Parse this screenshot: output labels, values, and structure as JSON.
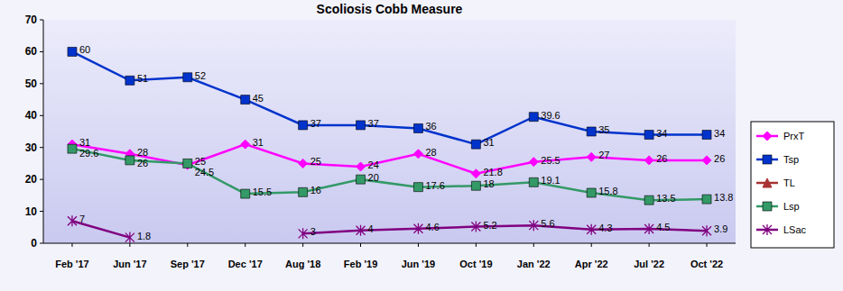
{
  "chart_data": {
    "type": "line",
    "title": "Scoliosis Cobb Measure",
    "categories": [
      "Feb '17",
      "Jun '17",
      "Sep '17",
      "Dec '17",
      "Aug '18",
      "Feb '19",
      "Jun '19",
      "Oct '19",
      "Jan '22",
      "Apr '22",
      "Jul '22",
      "Oct '22"
    ],
    "series": [
      {
        "name": "PrxT",
        "color": "#ff00ff",
        "marker": "diamond",
        "line_style": "solid",
        "values": [
          31,
          28,
          24.5,
          31,
          25,
          24,
          28,
          21.8,
          25.5,
          27,
          26,
          26
        ]
      },
      {
        "name": "Tsp",
        "color": "#0033cc",
        "marker": "square",
        "line_style": "solid",
        "values": [
          60,
          51,
          52,
          45,
          37,
          37,
          36,
          31,
          39.6,
          35,
          34,
          34
        ]
      },
      {
        "name": "TL",
        "color": "#a83232",
        "marker": "triangle",
        "line_style": "solid",
        "values": [
          null,
          null,
          null,
          null,
          null,
          null,
          null,
          null,
          null,
          null,
          null,
          null
        ]
      },
      {
        "name": "Lsp",
        "color": "#339966",
        "marker": "square",
        "line_style": "solid",
        "values": [
          29.6,
          26,
          25,
          15.5,
          16,
          20,
          17.6,
          18,
          19.1,
          15.8,
          13.5,
          13.8
        ]
      },
      {
        "name": "LSac",
        "color": "#800080",
        "marker": "star",
        "line_style": "solid",
        "values": [
          7,
          1.8,
          null,
          null,
          3,
          4,
          4.6,
          5.2,
          5.6,
          4.3,
          4.5,
          3.9
        ]
      }
    ],
    "ylim": [
      0,
      70
    ],
    "yticks": [
      0,
      10,
      20,
      30,
      40,
      50,
      60,
      70
    ],
    "grid": false,
    "legend": "right",
    "data_labels": true
  }
}
